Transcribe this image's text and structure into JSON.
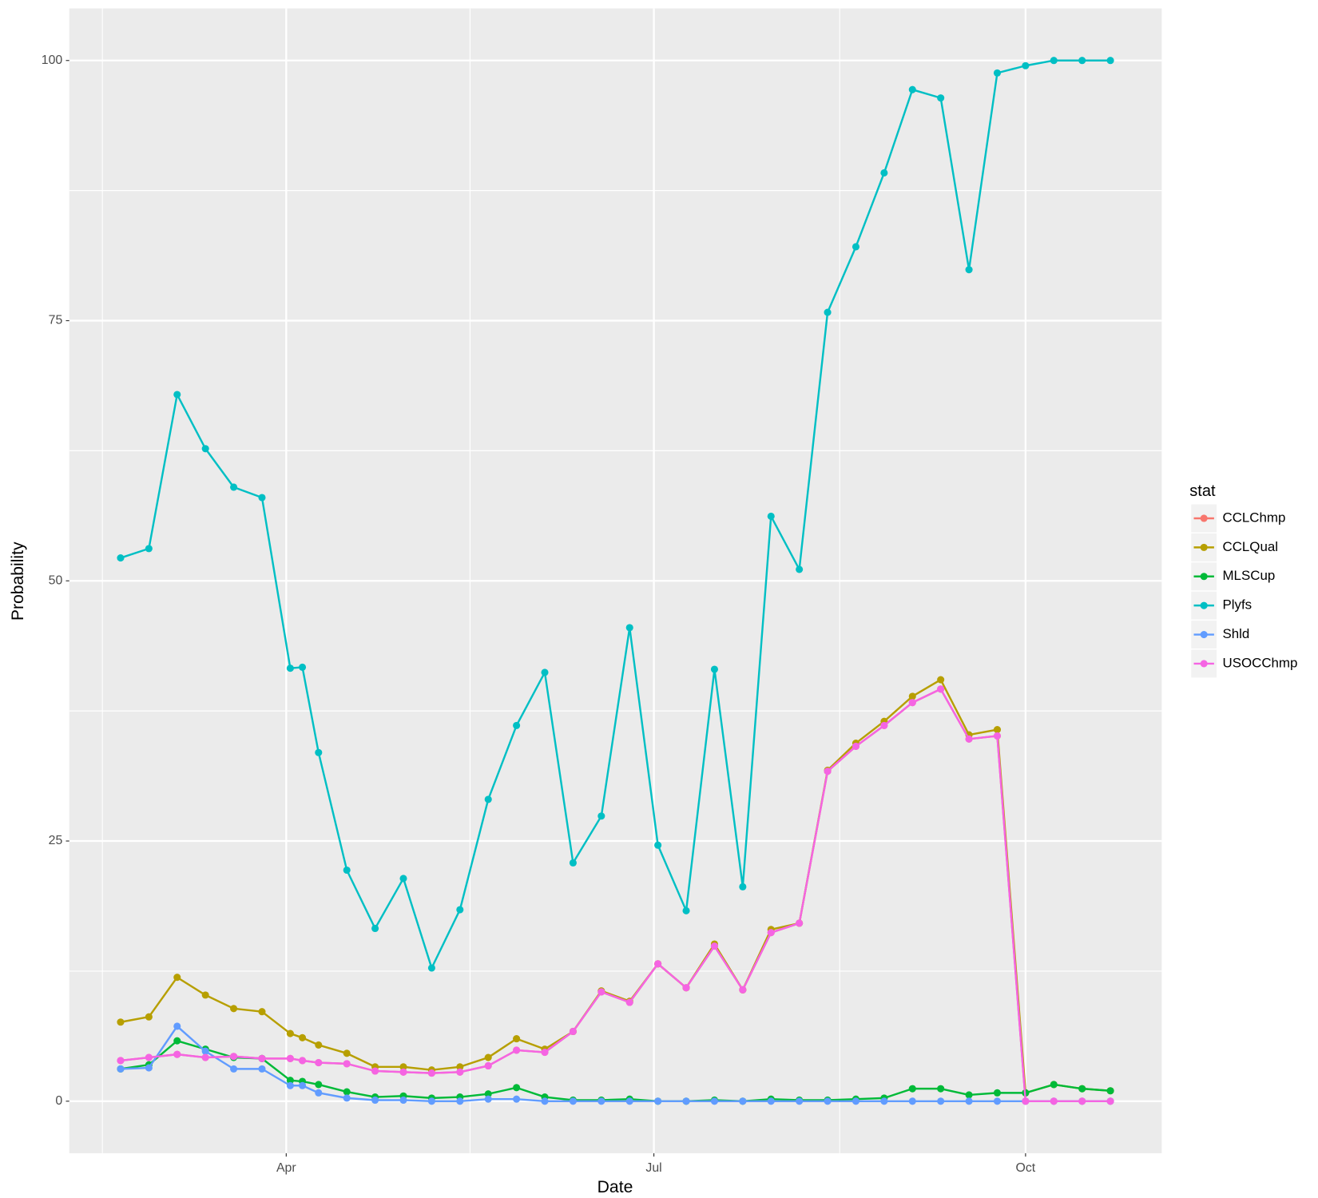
{
  "chart_data": {
    "type": "line",
    "xlabel": "Date",
    "ylabel": "Probability",
    "legend_title": "stat",
    "legend": "right",
    "grid": true,
    "xlim": [
      37.3,
      307.7
    ],
    "xticks": [
      {
        "value": 91,
        "label": "Apr"
      },
      {
        "value": 182,
        "label": "Jul"
      },
      {
        "value": 274,
        "label": "Oct"
      }
    ],
    "ylim": [
      -5,
      105
    ],
    "yticks": [
      0,
      25,
      50,
      75,
      100
    ],
    "x": [
      50,
      57,
      64,
      71,
      78,
      85,
      92,
      95,
      99,
      106,
      113,
      120,
      127,
      134,
      141,
      148,
      155,
      162,
      169,
      176,
      183,
      190,
      197,
      204,
      211,
      218,
      225,
      232,
      239,
      246,
      253,
      260,
      267,
      274,
      281,
      288,
      295
    ],
    "series": [
      {
        "name": "CCLChmp",
        "color": "#F8766D",
        "values": [
          3.9,
          4.2,
          4.5,
          4.2,
          4.3,
          4.1,
          4.1,
          3.9,
          3.7,
          3.6,
          2.9,
          2.8,
          2.7,
          2.8,
          3.4,
          4.9,
          4.7,
          6.7,
          10.5,
          9.5,
          13.2,
          10.9,
          14.9,
          10.7,
          16.2,
          17.1,
          31.7,
          34.1,
          36.1,
          38.3,
          39.6,
          34.8,
          35.1,
          0,
          0,
          0,
          0
        ]
      },
      {
        "name": "CCLQual",
        "color": "#B79F00",
        "values": [
          7.6,
          8.1,
          11.9,
          10.2,
          8.9,
          8.6,
          6.5,
          6.1,
          5.4,
          4.6,
          3.3,
          3.3,
          3.0,
          3.3,
          4.2,
          6.0,
          5.0,
          6.7,
          10.6,
          9.6,
          13.2,
          10.9,
          15.1,
          10.7,
          16.5,
          17.1,
          31.8,
          34.4,
          36.5,
          38.9,
          40.5,
          35.2,
          35.7,
          0.8,
          1.6,
          1.2,
          1.0
        ]
      },
      {
        "name": "MLSCup",
        "color": "#00BA38",
        "values": [
          3.1,
          3.5,
          5.8,
          5.0,
          4.2,
          4.1,
          2.0,
          1.9,
          1.6,
          0.9,
          0.4,
          0.5,
          0.3,
          0.4,
          0.7,
          1.3,
          0.4,
          0.1,
          0.1,
          0.2,
          0,
          0,
          0.1,
          0,
          0.2,
          0.1,
          0.1,
          0.2,
          0.3,
          1.2,
          1.2,
          0.6,
          0.8,
          0.8,
          1.6,
          1.2,
          1.0
        ]
      },
      {
        "name": "Plyfs",
        "color": "#00BFC4",
        "values": [
          52.2,
          53.1,
          67.9,
          62.7,
          59.0,
          58.0,
          41.6,
          41.7,
          33.5,
          22.2,
          16.6,
          21.4,
          12.8,
          18.4,
          29.0,
          36.1,
          41.2,
          22.9,
          27.4,
          45.5,
          24.6,
          18.3,
          41.5,
          20.6,
          56.2,
          51.1,
          75.8,
          82.1,
          89.2,
          97.2,
          96.4,
          79.9,
          98.8,
          99.5,
          100,
          100,
          100
        ]
      },
      {
        "name": "Shld",
        "color": "#619CFF",
        "values": [
          3.1,
          3.2,
          7.2,
          4.8,
          3.1,
          3.1,
          1.5,
          1.5,
          0.8,
          0.3,
          0.1,
          0.1,
          0,
          0,
          0.2,
          0.2,
          0,
          0,
          0,
          0,
          0,
          0,
          0,
          0,
          0,
          0,
          0,
          0,
          0,
          0,
          0,
          0,
          0,
          0,
          0,
          0,
          0
        ]
      },
      {
        "name": "USOCChmp",
        "color": "#F564E3",
        "values": [
          3.9,
          4.2,
          4.5,
          4.2,
          4.3,
          4.1,
          4.1,
          3.9,
          3.7,
          3.6,
          2.9,
          2.8,
          2.7,
          2.8,
          3.4,
          4.9,
          4.7,
          6.7,
          10.5,
          9.5,
          13.2,
          10.9,
          14.9,
          10.7,
          16.2,
          17.1,
          31.7,
          34.1,
          36.1,
          38.3,
          39.6,
          34.8,
          35.1,
          0,
          0,
          0,
          0
        ]
      }
    ]
  }
}
